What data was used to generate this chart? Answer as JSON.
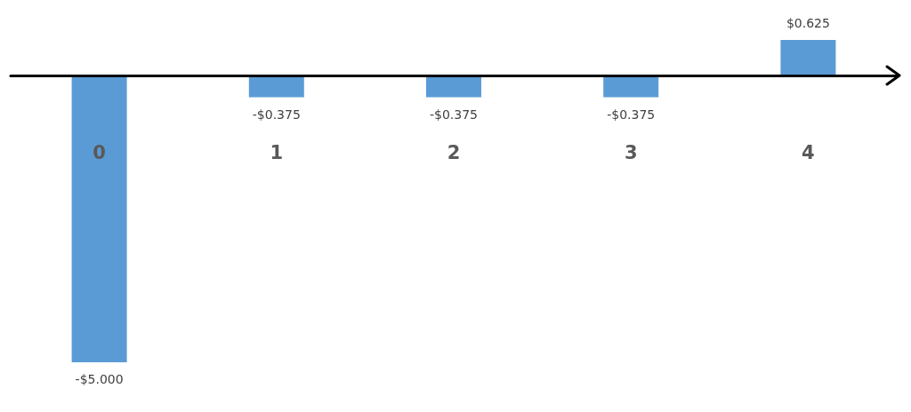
{
  "chart_data": {
    "type": "bar",
    "categories": [
      "0",
      "1",
      "2",
      "3",
      "4"
    ],
    "values": [
      -5,
      -0.375,
      -0.375,
      -0.375,
      0.625
    ],
    "value_labels": [
      "-$5.000",
      "-$0.375",
      "-$0.375",
      "-$0.375",
      "$0.625"
    ],
    "color": "#5b9bd5",
    "grid": false
  }
}
